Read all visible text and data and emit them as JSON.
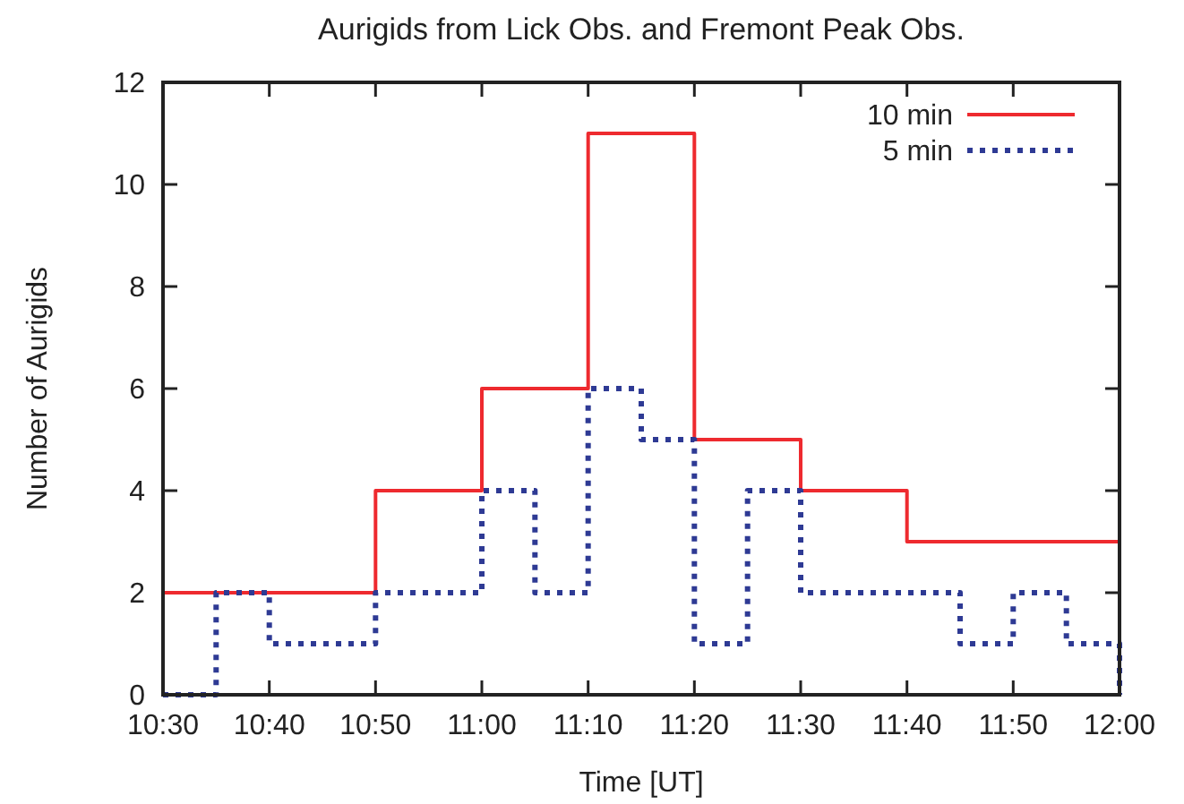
{
  "chart_data": {
    "type": "step",
    "title": "Aurigids from Lick Obs. and Fremont Peak Obs.",
    "xlabel": "Time [UT]",
    "ylabel": "Number of Aurigids",
    "legend": "top right",
    "xlim": [
      10.5,
      12
    ],
    "ylim": [
      0,
      12
    ],
    "xticks": [
      {
        "value": 10.5,
        "label": "10:30"
      },
      {
        "value": 10.6667,
        "label": "10:40"
      },
      {
        "value": 10.8333,
        "label": "10:50"
      },
      {
        "value": 11,
        "label": "11:00"
      },
      {
        "value": 11.1667,
        "label": "11:10"
      },
      {
        "value": 11.3333,
        "label": "11:20"
      },
      {
        "value": 11.5,
        "label": "11:30"
      },
      {
        "value": 11.6667,
        "label": "11:40"
      },
      {
        "value": 11.8333,
        "label": "11:50"
      },
      {
        "value": 12,
        "label": "12:00"
      }
    ],
    "yticks": [
      0,
      2,
      4,
      6,
      8,
      10,
      12
    ],
    "series": [
      {
        "name": "10 min",
        "color": "#ee2a2f",
        "line_style": "solid",
        "x": [
          10.5,
          10.6667,
          10.8333,
          11,
          11.1667,
          11.3333,
          11.5,
          11.6667,
          11.8333,
          12
        ],
        "values": [
          2,
          2,
          4,
          6,
          11,
          5,
          4,
          3,
          3,
          0
        ]
      },
      {
        "name": "5 min",
        "color": "#2e3a94",
        "line_style": "dotted",
        "x": [
          10.5,
          10.5833,
          10.6667,
          10.75,
          10.8333,
          10.9167,
          11,
          11.0833,
          11.1667,
          11.25,
          11.3333,
          11.4167,
          11.5,
          11.5833,
          11.6667,
          11.75,
          11.8333,
          11.9167,
          12
        ],
        "values": [
          0,
          2,
          1,
          1,
          2,
          2,
          4,
          2,
          6,
          5,
          1,
          4,
          2,
          2,
          2,
          1,
          2,
          1,
          0
        ]
      }
    ]
  }
}
